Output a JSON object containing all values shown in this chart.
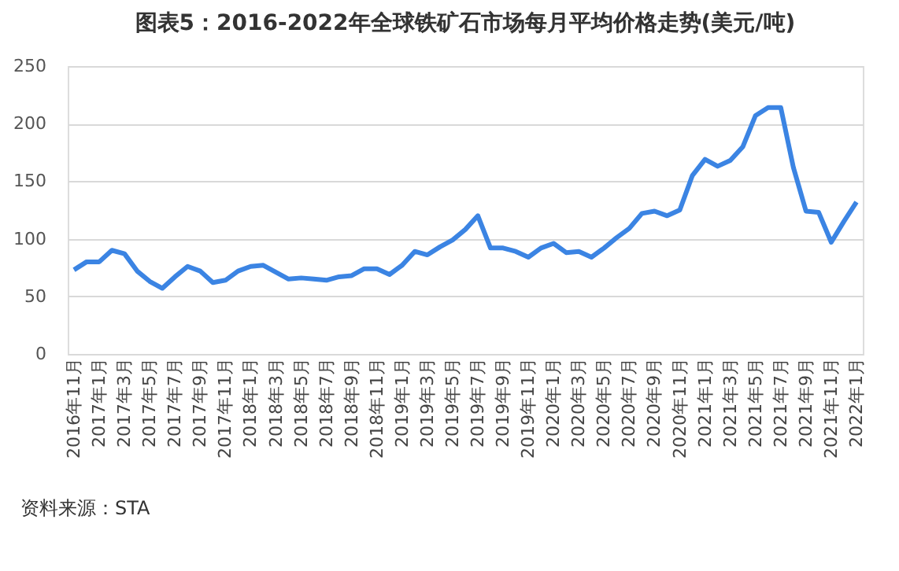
{
  "chart_data": {
    "type": "line",
    "title": "图表5：2016-2022年全球铁矿石市场每月平均价格走势(美元/吨)",
    "categories": [
      "2016年11月",
      null,
      "2017年1月",
      null,
      "2017年3月",
      null,
      "2017年5月",
      null,
      "2017年7月",
      null,
      "2017年9月",
      null,
      "2017年11月",
      null,
      "2018年1月",
      null,
      "2018年3月",
      null,
      "2018年5月",
      null,
      "2018年7月",
      null,
      "2018年9月",
      null,
      "2018年11月",
      null,
      "2019年1月",
      null,
      "2019年3月",
      null,
      "2019年5月",
      null,
      "2019年7月",
      null,
      "2019年9月",
      null,
      "2019年11月",
      null,
      "2020年1月",
      null,
      "2020年3月",
      null,
      "2020年5月",
      null,
      "2020年7月",
      null,
      "2020年9月",
      null,
      "2020年11月",
      null,
      "2021年1月",
      null,
      "2021年3月",
      null,
      "2021年5月",
      null,
      "2021年7月",
      null,
      "2021年9月",
      null,
      "2021年11月",
      null,
      "2022年1月"
    ],
    "series": [
      {
        "color": "#3b84e3",
        "values": [
          73,
          80,
          80,
          90,
          87,
          72,
          63,
          57,
          67,
          76,
          72,
          62,
          64,
          72,
          76,
          77,
          71,
          65,
          66,
          65,
          64,
          67,
          68,
          74,
          74,
          69,
          77,
          89,
          86,
          93,
          99,
          108,
          120,
          92,
          92,
          89,
          84,
          92,
          96,
          88,
          89,
          84,
          92,
          101,
          109,
          122,
          124,
          120,
          125,
          155,
          169,
          163,
          168,
          180,
          207,
          214,
          214,
          162,
          124,
          123,
          97,
          115,
          132
        ]
      }
    ],
    "ylim": [
      0,
      250
    ],
    "yticks": [
      0,
      50,
      100,
      150,
      200,
      250
    ],
    "grid": "y",
    "marker": "none",
    "line_style": "solid",
    "annotations": [
      "资料来源：STA"
    ]
  }
}
